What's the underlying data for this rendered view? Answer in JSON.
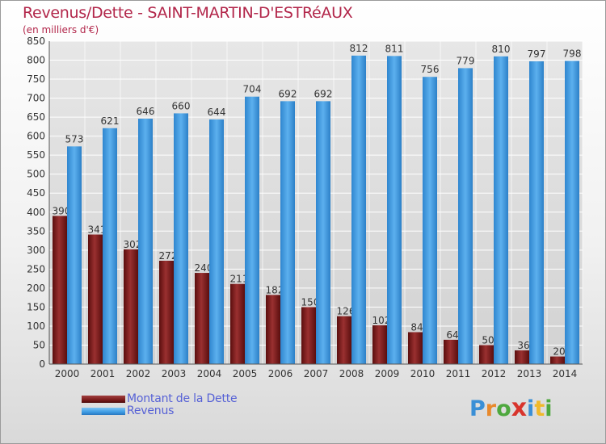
{
  "header": {
    "title": "Revenus/Dette - SAINT-MARTIN-D'ESTRéAUX",
    "subtitle": "(en milliers d'€)"
  },
  "chart_data": {
    "type": "bar",
    "title": "Revenus/Dette - SAINT-MARTIN-D'ESTRéAUX",
    "subtitle": "(en milliers d'€)",
    "xlabel": "",
    "ylabel": "",
    "ylim": [
      0,
      850
    ],
    "yticks": [
      0,
      50,
      100,
      150,
      200,
      250,
      300,
      350,
      400,
      450,
      500,
      550,
      600,
      650,
      700,
      750,
      800,
      850
    ],
    "grid": "horizontal",
    "legend_position": "bottom-left",
    "categories": [
      "2000",
      "2001",
      "2002",
      "2003",
      "2004",
      "2005",
      "2006",
      "2007",
      "2008",
      "2009",
      "2010",
      "2011",
      "2012",
      "2013",
      "2014"
    ],
    "series": [
      {
        "name": "Montant de la Dette",
        "color": "#7a1a1a",
        "values": [
          390,
          341,
          302,
          272,
          240,
          211,
          182,
          150,
          126,
          102,
          84,
          64,
          50,
          36,
          20
        ]
      },
      {
        "name": "Revenus",
        "color": "#3d9be3",
        "values": [
          573,
          621,
          646,
          660,
          644,
          704,
          692,
          692,
          812,
          811,
          756,
          779,
          810,
          797,
          798
        ]
      }
    ]
  },
  "legend": {
    "items": [
      {
        "label": "Montant de la Dette",
        "color": "#7a1a1a"
      },
      {
        "label": "Revenus",
        "color": "#3d9be3"
      }
    ]
  },
  "brand": {
    "letters": [
      {
        "char": "P",
        "color": "#3a8fd6"
      },
      {
        "char": "r",
        "color": "#e8892c"
      },
      {
        "char": "o",
        "color": "#4ea83e"
      },
      {
        "char": "x",
        "color": "#d8342c"
      },
      {
        "char": "i",
        "color": "#3a8fd6"
      },
      {
        "char": "t",
        "color": "#f0b92a"
      },
      {
        "char": "i",
        "color": "#4ea83e"
      }
    ]
  },
  "colors": {
    "title": "#b2264a",
    "grid": "#ffffff",
    "axis_text": "#333333",
    "debt": "#7a1a1a",
    "revenue": "#3d9be3"
  }
}
